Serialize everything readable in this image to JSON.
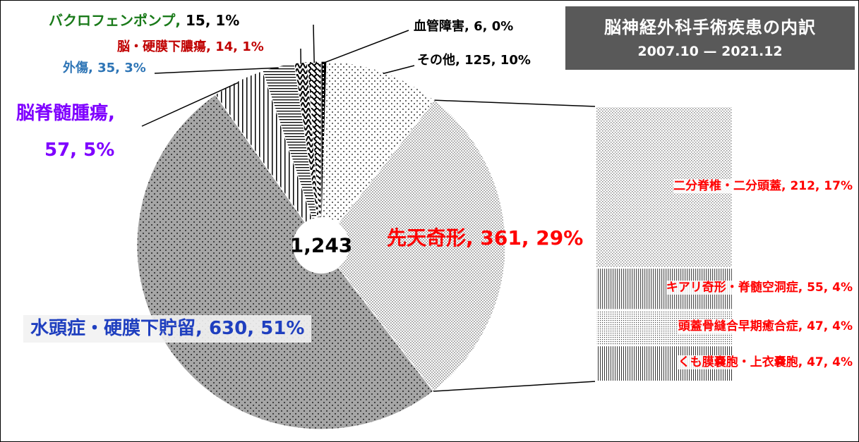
{
  "chart_data": {
    "type": "pie-of-bar",
    "title": "脳神経外科手術疾患の内訳",
    "subtitle": "2007.10 — 2021.12",
    "center_label": "1,243",
    "categories": [
      "血管障害",
      "その他",
      "先天奇形",
      "水頭症・硬膜下貯留",
      "脳脊髄腫瘍",
      "外傷",
      "脳・硬膜下膿瘍",
      "バクロフェンポンプ"
    ],
    "values": [
      6,
      125,
      361,
      630,
      57,
      35,
      14,
      15
    ],
    "value_labels": [
      "6, 0%",
      "125, 10%",
      "361, 29%",
      "630, 51%",
      "57, 5%",
      "35, 3%",
      "14, 1%",
      "15, 1%"
    ],
    "label_colors": [
      "#000000",
      "#000000",
      "#ff0000",
      "#1f3fbf",
      "#7f00ff",
      "#2e75b6",
      "#c00000",
      "#1a7a1a"
    ],
    "value_label_colors": [
      "#000000",
      "#000000",
      "#ff0000",
      "#1f3fbf",
      "#7f00ff",
      "#2e75b6",
      "#c00000",
      "#000000"
    ],
    "breakdown": {
      "categories": [
        "二分脊椎・二分頭蓋",
        "キアリ奇形・脊髄空洞症",
        "頭蓋骨縫合早期癒合症",
        "くも膜嚢胞・上衣嚢胞"
      ],
      "values": [
        212,
        55,
        47,
        47
      ],
      "value_labels": [
        "212, 17%",
        "55, 4%",
        "47, 4%",
        "47, 4%"
      ],
      "color": "#ff0000"
    }
  }
}
